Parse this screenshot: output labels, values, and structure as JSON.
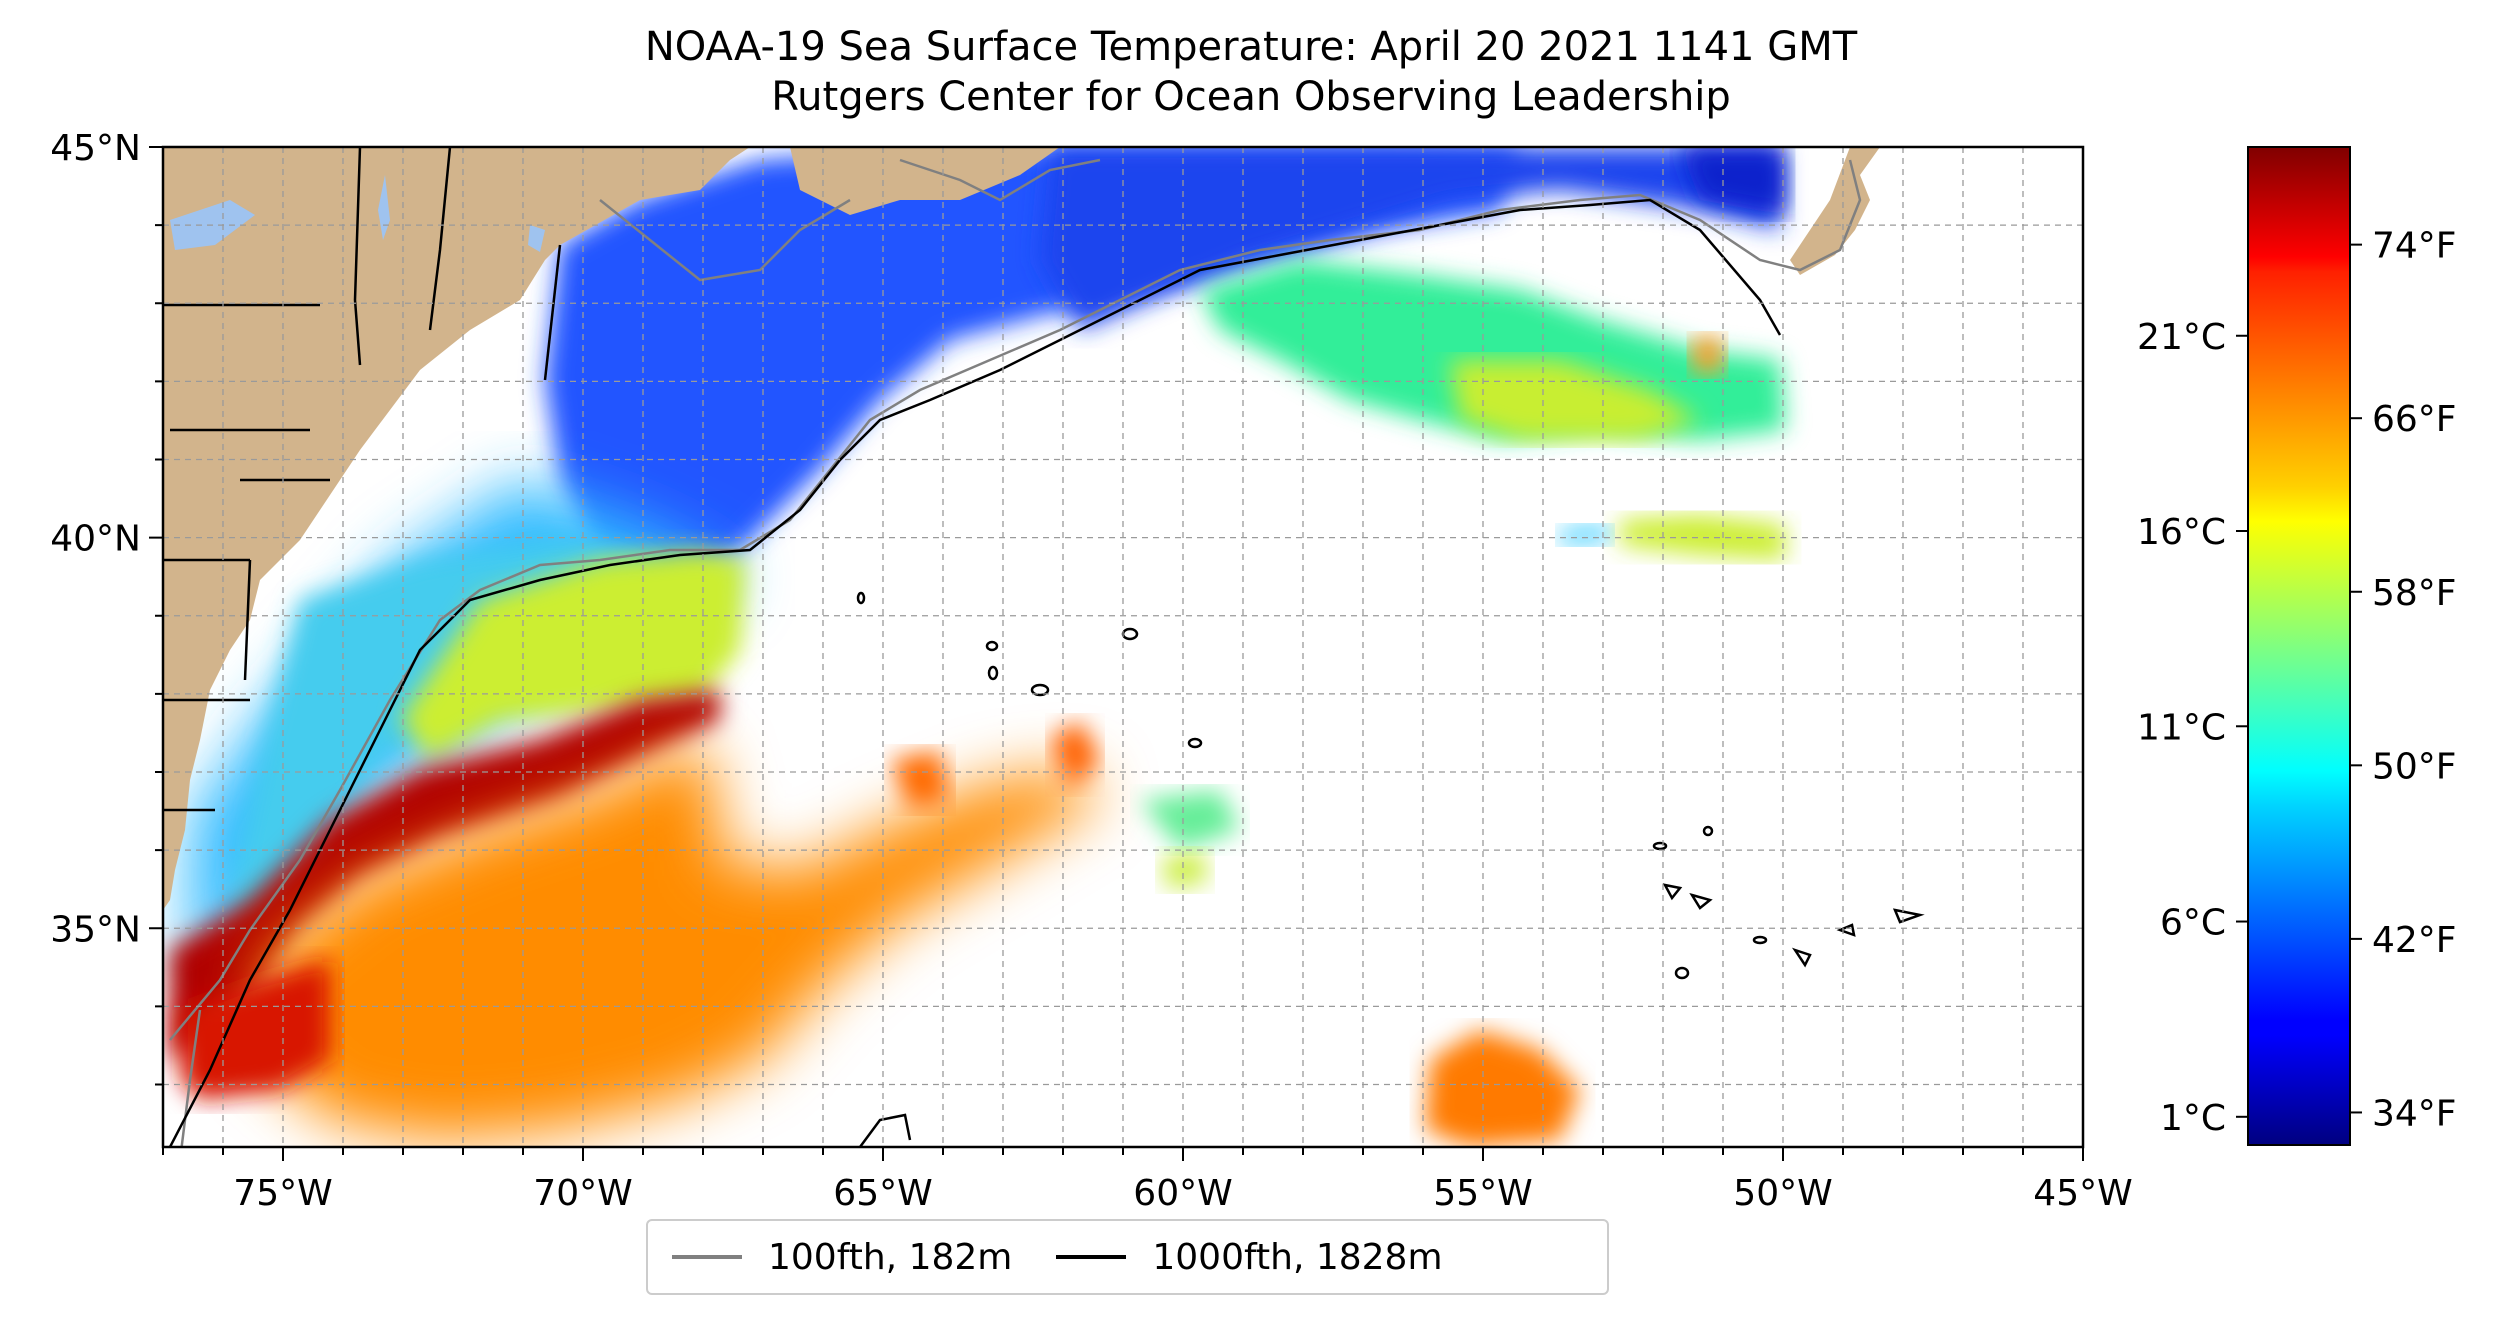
{
  "title": {
    "line1": "NOAA-19 Sea Surface Temperature: April 20 2021 1141 GMT",
    "line2": "Rutgers Center for Ocean Observing Leadership"
  },
  "map": {
    "x_ticks": [
      "75°W",
      "70°W",
      "65°W",
      "60°W",
      "55°W",
      "50°W",
      "45°W"
    ],
    "x_tick_values": [
      -75,
      -70,
      -65,
      -60,
      -55,
      -50,
      -45
    ],
    "y_ticks": [
      "45°N",
      "40°N",
      "35°N"
    ],
    "y_tick_values": [
      45,
      40,
      35
    ],
    "lon_range": [
      -77,
      -45
    ],
    "lat_range": [
      32.2,
      45
    ],
    "grid": true,
    "land_color": "#d2b48c",
    "ocean_nodata_color": "#ffffff"
  },
  "colorbar": {
    "celsius_ticks": [
      "21°C",
      "16°C",
      "11°C",
      "6°C",
      "1°C"
    ],
    "celsius_values": [
      21,
      16,
      11,
      6,
      1
    ],
    "fahrenheit_ticks": [
      "74°F",
      "66°F",
      "58°F",
      "50°F",
      "42°F",
      "34°F"
    ],
    "fahrenheit_values": [
      74,
      66,
      58,
      50,
      42,
      34
    ],
    "colormap": "jet",
    "range_f": [
      32.5,
      78.5
    ]
  },
  "legend": {
    "items": [
      {
        "label": "100fth, 182m",
        "color": "#808080"
      },
      {
        "label": "1000fth, 1828m",
        "color": "#000000"
      }
    ]
  }
}
